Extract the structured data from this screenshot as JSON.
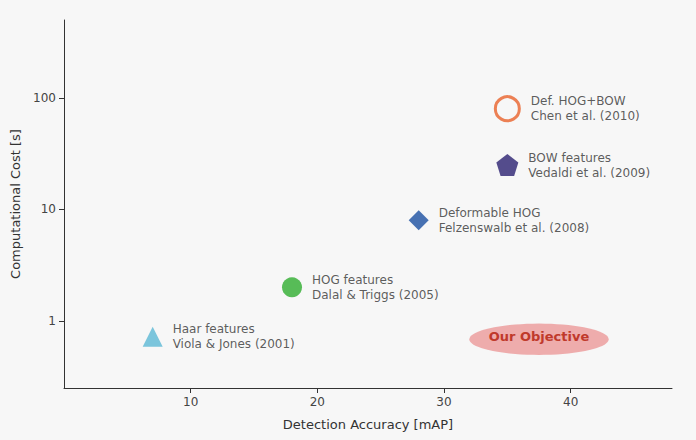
{
  "chart_data": {
    "type": "scatter",
    "xlabel": "Detection Accuracy [mAP]",
    "ylabel": "Computational Cost [s]",
    "log": "y",
    "grid": false,
    "xlim": [
      0,
      48
    ],
    "ylim": [
      0.25,
      500
    ],
    "xticks": [
      10,
      20,
      30,
      40
    ],
    "yticks": [
      1,
      10,
      100
    ],
    "background_color": "#f7f7f7",
    "series": [
      {
        "name": "Haar features\nViola & Jones (2001)",
        "color": "#5BB8D4",
        "marker": "triangle",
        "x": [
          7
        ],
        "values": [
          0.72
        ]
      },
      {
        "name": "HOG features\nDalal & Triggs (2005)",
        "color": "#2EAD2E",
        "marker": "circle",
        "x": [
          18
        ],
        "values": [
          2.0
        ]
      },
      {
        "name": "Deformable HOG\nFelzenswalb et al. (2008)",
        "color": "#1A4FA0",
        "marker": "diamond",
        "x": [
          28
        ],
        "values": [
          8.0
        ]
      },
      {
        "name": "BOW features\nVedaldi et al. (2009)",
        "color": "#2B2070",
        "marker": "pentagon",
        "x": [
          35
        ],
        "values": [
          25.0
        ]
      },
      {
        "name": "Def. HOG+BOW\nChen et al. (2010)",
        "color": "#E8622A",
        "marker": "open_circle",
        "x": [
          35
        ],
        "values": [
          80.0
        ]
      }
    ],
    "annotations": [
      {
        "text": "Our Objective",
        "x": 37.5,
        "y": 0.72,
        "width": 11,
        "height": 0.45,
        "color": "#E87070",
        "text_color": "#C0392B"
      }
    ]
  }
}
